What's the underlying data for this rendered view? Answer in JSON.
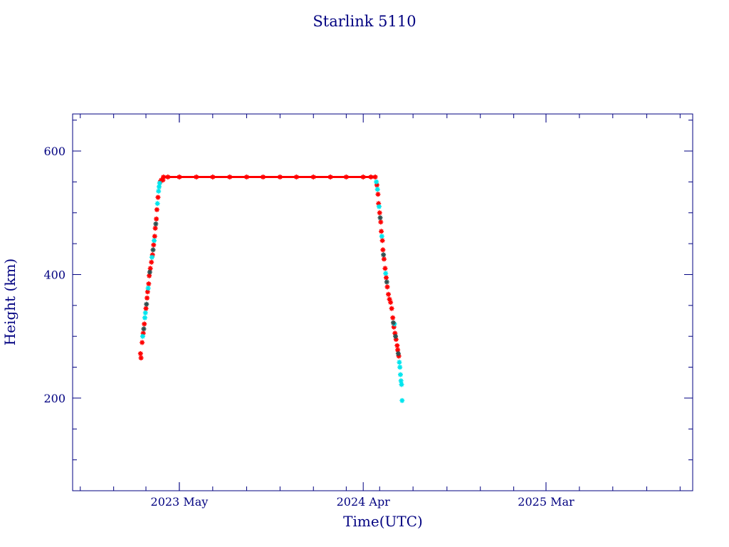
{
  "chart_data": {
    "type": "scatter",
    "title": "Starlink 5110",
    "xlabel": "Time(UTC)",
    "ylabel": "Height (km)",
    "ylim": [
      50,
      660
    ],
    "xlim": [
      "2022-10-18",
      "2025-11-24"
    ],
    "grid": false,
    "legend": "none",
    "x_tick_labels": [
      {
        "date": "2023-05-01",
        "label": "2023 May"
      },
      {
        "date": "2024-04-01",
        "label": "2024 Apr"
      },
      {
        "date": "2025-03-01",
        "label": "2025 Mar"
      }
    ],
    "y_tick_labels": [
      {
        "value": 200,
        "label": "200"
      },
      {
        "value": 400,
        "label": "400"
      },
      {
        "value": 600,
        "label": "600"
      }
    ],
    "series": [
      {
        "color": "#ff0000",
        "marker": "asterisk",
        "points": [
          [
            "2023-02-19",
            272
          ],
          [
            "2023-02-20",
            265
          ],
          [
            "2023-02-22",
            290
          ],
          [
            "2023-02-24",
            305
          ],
          [
            "2023-02-26",
            320
          ],
          [
            "2023-03-01",
            345
          ],
          [
            "2023-03-03",
            362
          ],
          [
            "2023-03-04",
            372
          ],
          [
            "2023-03-06",
            385
          ],
          [
            "2023-03-07",
            398
          ],
          [
            "2023-03-09",
            410
          ],
          [
            "2023-03-11",
            420
          ],
          [
            "2023-03-13",
            432
          ],
          [
            "2023-03-15",
            448
          ],
          [
            "2023-03-17",
            462
          ],
          [
            "2023-03-18",
            475
          ],
          [
            "2023-03-20",
            490
          ],
          [
            "2023-03-21",
            505
          ],
          [
            "2023-03-23",
            525
          ],
          [
            "2023-03-27",
            550
          ],
          [
            "2023-03-29",
            553
          ],
          [
            "2023-04-01",
            553
          ],
          [
            "2023-04-02",
            558
          ],
          [
            "2023-04-10",
            558
          ],
          [
            "2023-05-01",
            558
          ],
          [
            "2023-06-01",
            558
          ],
          [
            "2023-07-01",
            558
          ],
          [
            "2023-08-01",
            558
          ],
          [
            "2023-09-01",
            558
          ],
          [
            "2023-10-01",
            558
          ],
          [
            "2023-11-01",
            558
          ],
          [
            "2023-12-01",
            558
          ],
          [
            "2024-01-01",
            558
          ],
          [
            "2024-02-01",
            558
          ],
          [
            "2024-03-01",
            558
          ],
          [
            "2024-04-01",
            558
          ],
          [
            "2024-04-15",
            558
          ],
          [
            "2024-04-23",
            558
          ],
          [
            "2024-04-26",
            545
          ],
          [
            "2024-04-28",
            530
          ],
          [
            "2024-04-29",
            515
          ],
          [
            "2024-05-01",
            500
          ],
          [
            "2024-05-03",
            485
          ],
          [
            "2024-05-04",
            470
          ],
          [
            "2024-05-06",
            455
          ],
          [
            "2024-05-07",
            440
          ],
          [
            "2024-05-09",
            425
          ],
          [
            "2024-05-11",
            410
          ],
          [
            "2024-05-13",
            395
          ],
          [
            "2024-05-15",
            380
          ],
          [
            "2024-05-17",
            368
          ],
          [
            "2024-05-19",
            360
          ],
          [
            "2024-05-21",
            355
          ],
          [
            "2024-05-23",
            345
          ],
          [
            "2024-05-25",
            330
          ],
          [
            "2024-05-27",
            315
          ],
          [
            "2024-05-29",
            305
          ],
          [
            "2024-05-31",
            295
          ],
          [
            "2024-06-02",
            285
          ],
          [
            "2024-06-03",
            278
          ],
          [
            "2024-06-05",
            268
          ]
        ]
      },
      {
        "color": "#00e5ee",
        "marker": "asterisk",
        "points": [
          [
            "2023-02-23",
            300
          ],
          [
            "2023-02-27",
            330
          ],
          [
            "2023-02-28",
            338
          ],
          [
            "2023-03-05",
            378
          ],
          [
            "2023-03-12",
            428
          ],
          [
            "2023-03-16",
            455
          ],
          [
            "2023-03-22",
            515
          ],
          [
            "2023-03-24",
            535
          ],
          [
            "2023-03-25",
            542
          ],
          [
            "2023-03-26",
            548
          ],
          [
            "2024-04-25",
            550
          ],
          [
            "2024-04-27",
            538
          ],
          [
            "2024-04-30",
            510
          ],
          [
            "2024-05-05",
            462
          ],
          [
            "2024-05-12",
            402
          ],
          [
            "2024-05-28",
            320
          ],
          [
            "2024-06-06",
            258
          ],
          [
            "2024-06-07",
            250
          ],
          [
            "2024-06-08",
            238
          ],
          [
            "2024-06-09",
            228
          ],
          [
            "2024-06-10",
            222
          ],
          [
            "2024-06-11",
            196
          ]
        ]
      },
      {
        "color": "#2f4f4f",
        "marker": "asterisk",
        "points": [
          [
            "2023-02-25",
            312
          ],
          [
            "2023-03-02",
            352
          ],
          [
            "2023-03-08",
            404
          ],
          [
            "2023-03-14",
            440
          ],
          [
            "2023-03-19",
            482
          ],
          [
            "2024-05-02",
            492
          ],
          [
            "2024-05-08",
            432
          ],
          [
            "2024-05-14",
            388
          ],
          [
            "2024-05-26",
            322
          ],
          [
            "2024-05-30",
            300
          ],
          [
            "2024-06-04",
            272
          ]
        ]
      }
    ]
  }
}
